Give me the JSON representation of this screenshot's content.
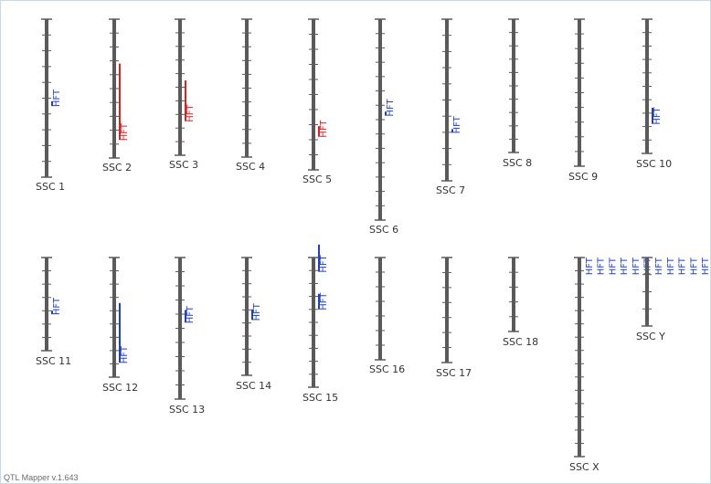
{
  "app": {
    "version_text": "QTL Mapper v.1.643"
  },
  "colors": {
    "chromosome": "#5a5a5a",
    "tick": "#5a5a5a",
    "qtl_red": "#e02020",
    "qtl_blue": "#1f3fcf",
    "label": "#333333"
  },
  "chromosomes": [
    {
      "name": "SSC 1",
      "ticks": 10,
      "qtls": [
        {
          "label": "HFT",
          "color": "blue",
          "span": 0.52,
          "len": 0.03
        }
      ]
    },
    {
      "name": "SSC 2",
      "ticks": 10,
      "qtls": [
        {
          "label": "HFT",
          "color": "red",
          "span": 0.32,
          "len": 0.55
        }
      ]
    },
    {
      "name": "SSC 3",
      "ticks": 10,
      "qtls": [
        {
          "label": "HFT",
          "color": "red",
          "span": 0.45,
          "len": 0.3
        }
      ]
    },
    {
      "name": "SSC 4",
      "ticks": 10,
      "qtls": []
    },
    {
      "name": "SSC 5",
      "ticks": 10,
      "qtls": [
        {
          "label": "HFT",
          "color": "red",
          "span": 0.71,
          "len": 0.07
        }
      ]
    },
    {
      "name": "SSC 6",
      "ticks": 14,
      "qtls": [
        {
          "label": "HFT",
          "color": "blue",
          "span": 0.46,
          "len": 0.02
        }
      ]
    },
    {
      "name": "SSC 7",
      "ticks": 10,
      "qtls": [
        {
          "label": "HFT",
          "color": "blue",
          "span": 0.68,
          "len": 0.01
        }
      ]
    },
    {
      "name": "SSC 8",
      "ticks": 10,
      "qtls": []
    },
    {
      "name": "SSC 9",
      "ticks": 10,
      "qtls": []
    },
    {
      "name": "SSC 10",
      "ticks": 10,
      "qtls": [
        {
          "label": "HFT",
          "color": "blue",
          "span": 0.66,
          "len": 0.12
        }
      ]
    },
    {
      "name": "SSC 11",
      "ticks": 7,
      "qtls": [
        {
          "label": "HFT",
          "color": "blue",
          "span": 0.57,
          "len": 0.03
        }
      ]
    },
    {
      "name": "SSC 12",
      "ticks": 9,
      "qtls": [
        {
          "label": "HFT",
          "color": "blue",
          "span": 0.38,
          "len": 0.5
        }
      ]
    },
    {
      "name": "SSC 13",
      "ticks": 10,
      "qtls": [
        {
          "label": "HFT",
          "color": "blue",
          "span": 0.37,
          "len": 0.09
        }
      ]
    },
    {
      "name": "SSC 14",
      "ticks": 9,
      "qtls": [
        {
          "label": "HFT",
          "color": "blue",
          "span": 0.44,
          "len": 0.09
        }
      ]
    },
    {
      "name": "SSC 15",
      "ticks": 10,
      "qtls": [
        {
          "label": "HFT",
          "color": "blue",
          "span": -0.1,
          "len": 0.21
        },
        {
          "label": "HFT",
          "color": "blue",
          "span": 0.28,
          "len": 0.12
        }
      ]
    },
    {
      "name": "SSC 16",
      "ticks": 7,
      "qtls": []
    },
    {
      "name": "SSC 17",
      "ticks": 7,
      "qtls": []
    },
    {
      "name": "SSC 18",
      "ticks": 5,
      "qtls": []
    },
    {
      "name": "SSC X",
      "ticks": 15,
      "qtls": [
        {
          "label": "HFT",
          "color": "blue"
        },
        {
          "label": "HFT",
          "color": "blue"
        },
        {
          "label": "HFT",
          "color": "blue"
        },
        {
          "label": "HFT",
          "color": "blue"
        },
        {
          "label": "HFT",
          "color": "blue"
        },
        {
          "label": "HFT",
          "color": "blue"
        },
        {
          "label": "HFT",
          "color": "blue"
        },
        {
          "label": "HFT",
          "color": "blue"
        },
        {
          "label": "HFT",
          "color": "blue"
        },
        {
          "label": "HFT",
          "color": "blue"
        },
        {
          "label": "HFT",
          "color": "blue"
        }
      ]
    },
    {
      "name": "SSC Y",
      "ticks": 4,
      "qtls": []
    }
  ]
}
